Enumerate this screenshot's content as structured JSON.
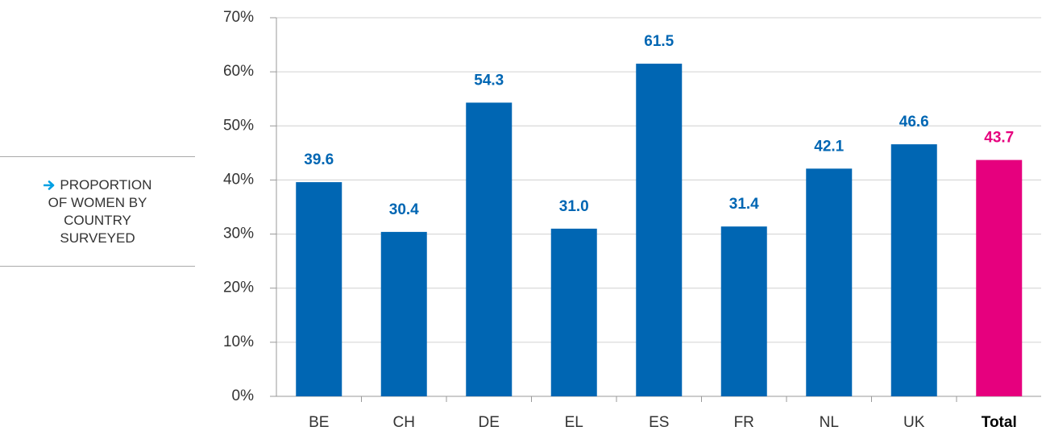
{
  "chart_data": {
    "type": "bar",
    "y_label": "PROPORTION OF WOMEN BY COUNTRY SURVEYED",
    "categories": [
      "BE",
      "CH",
      "DE",
      "EL",
      "ES",
      "FR",
      "NL",
      "UK",
      "Total"
    ],
    "values": [
      39.6,
      30.4,
      54.3,
      31.0,
      61.5,
      31.4,
      42.1,
      46.6,
      43.7
    ],
    "value_labels": [
      "39.6",
      "30.4",
      "54.3",
      "31.0",
      "61.5",
      "31.4",
      "42.1",
      "46.6",
      "43.7"
    ],
    "color": "#0066b3",
    "colors": [
      "#0066b3",
      "#0066b3",
      "#0066b3",
      "#0066b3",
      "#0066b3",
      "#0066b3",
      "#0066b3",
      "#0066b3",
      "#e6007e"
    ],
    "ylim": [
      0,
      70
    ],
    "yticks": [
      {
        "value": 0,
        "label": "0%"
      },
      {
        "value": 10,
        "label": "10%"
      },
      {
        "value": 20,
        "label": "20%"
      },
      {
        "value": 30,
        "label": "30%"
      },
      {
        "value": 40,
        "label": "40%"
      },
      {
        "value": 50,
        "label": "50%"
      },
      {
        "value": 60,
        "label": "60%"
      },
      {
        "value": 70,
        "label": "70%"
      }
    ],
    "grid": true
  }
}
